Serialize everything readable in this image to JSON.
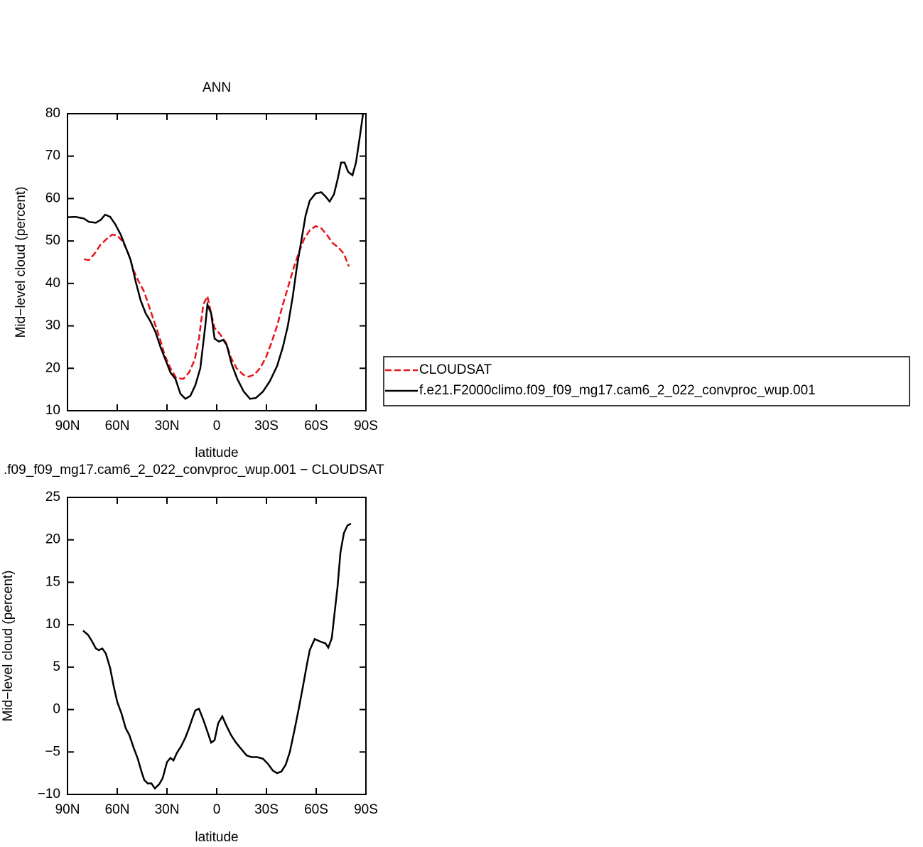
{
  "chart_data": [
    {
      "type": "line",
      "title": "ANN",
      "xlabel": "latitude",
      "ylabel": "Mid−level cloud (percent)",
      "xlim": [
        90,
        -90
      ],
      "ylim": [
        10,
        80
      ],
      "xticks": [
        {
          "value": 90,
          "label": "90N"
        },
        {
          "value": 60,
          "label": "60N"
        },
        {
          "value": 30,
          "label": "30N"
        },
        0,
        {
          "value": -30,
          "label": "30S"
        },
        {
          "value": -60,
          "label": "60S"
        },
        {
          "value": -90,
          "label": "90S"
        }
      ],
      "yticks": [
        10,
        20,
        30,
        40,
        50,
        60,
        70,
        80
      ],
      "legend": "outside right",
      "series": [
        {
          "name": "CLOUDSAT",
          "color": "#e8141a",
          "style": "dashed",
          "x": [
            80.1,
            77.1,
            73.7,
            70.3,
            66.4,
            63,
            60,
            57,
            53.6,
            50.1,
            47.1,
            43.7,
            40.7,
            37.3,
            34.3,
            31.3,
            27.9,
            24.4,
            20.1,
            16.7,
            13.3,
            10.7,
            8.1,
            5.6,
            3.4,
            1.3,
            -2.1,
            -5.6,
            -8.6,
            -12,
            -15.9,
            -19.3,
            -22.7,
            -26.1,
            -29.6,
            -33,
            -36.4,
            -39.9,
            -43.3,
            -46.7,
            -49.3,
            -52.7,
            -56.1,
            -59.6,
            -63,
            -66.4,
            -69.9,
            -73.3,
            -76.7,
            -79.7
          ],
          "values": [
            45.7,
            45.5,
            47,
            49,
            50.5,
            51.5,
            51.3,
            50,
            47.5,
            43,
            40.5,
            38,
            34.5,
            30.5,
            27,
            23,
            20,
            17.7,
            17.5,
            19,
            22,
            27,
            35,
            37,
            33,
            29.5,
            28,
            26,
            22.5,
            20,
            18.5,
            18,
            18.5,
            20,
            22.5,
            26,
            30,
            35,
            39.5,
            44,
            47,
            50.5,
            52.5,
            53.5,
            53,
            51.5,
            49.5,
            48.5,
            47,
            44
          ]
        },
        {
          "name": "f.e21.F2000climo.f09_f09_mg17.cam6_2_022_convproc_wup.001",
          "color": "#000000",
          "style": "solid",
          "x": [
            90,
            85.3,
            80.1,
            77.1,
            72.9,
            69.9,
            67.3,
            64.3,
            61.3,
            57.9,
            54.9,
            51.9,
            48.9,
            45.9,
            42.9,
            39.9,
            36.9,
            33.9,
            30.9,
            27.9,
            24.9,
            21.9,
            18.9,
            15.9,
            12.9,
            9.9,
            6.9,
            5.6,
            3.4,
            1.3,
            -1.3,
            -3.9,
            -6,
            -9,
            -12.4,
            -16.3,
            -20.1,
            -23.6,
            -27.9,
            -32.1,
            -36.4,
            -39.9,
            -42.9,
            -45.9,
            -48.4,
            -51,
            -53.6,
            -56.1,
            -59.6,
            -63,
            -65.6,
            -68.1,
            -70.7,
            -72.9,
            -75,
            -77.1,
            -79.3,
            -81.9,
            -84,
            -86.1,
            -88.3
          ],
          "values": [
            55.6,
            55.7,
            55.3,
            54.5,
            54.3,
            55,
            56.2,
            55.7,
            54,
            51.5,
            48.5,
            45.5,
            40.5,
            36,
            33,
            31,
            28.5,
            25,
            22,
            19,
            17.5,
            14,
            12.8,
            13.5,
            16,
            20,
            30,
            35,
            33,
            27,
            26.3,
            26.7,
            25.5,
            21,
            17.5,
            14.5,
            12.8,
            13,
            14.5,
            17,
            20.5,
            25,
            30,
            37,
            44,
            50,
            56,
            59.5,
            61.2,
            61.5,
            60.5,
            59.3,
            61,
            64.5,
            68.5,
            68.5,
            66.3,
            65.5,
            68.5,
            74,
            80
          ]
        }
      ]
    },
    {
      "type": "line",
      "title": ".f09_f09_mg17.cam6_2_022_convproc_wup.001 − CLOUDSAT",
      "xlabel": "latitude",
      "ylabel": "Mid−level cloud (percent)",
      "xlim": [
        90,
        -90
      ],
      "ylim": [
        -10,
        25
      ],
      "xticks": [
        {
          "value": 90,
          "label": "90N"
        },
        {
          "value": 60,
          "label": "60N"
        },
        {
          "value": 30,
          "label": "30N"
        },
        0,
        {
          "value": -30,
          "label": "30S"
        },
        {
          "value": -60,
          "label": "60S"
        },
        {
          "value": -90,
          "label": "90S"
        }
      ],
      "yticks": [
        {
          "value": -10,
          "label": "−10"
        },
        {
          "value": -5,
          "label": "−5"
        },
        0,
        5,
        10,
        15,
        20,
        25
      ],
      "series": [
        {
          "color": "#000000",
          "style": "solid",
          "x": [
            80.6,
            77.6,
            75.4,
            72.9,
            71.1,
            69,
            66.9,
            64.3,
            62.1,
            60,
            57.4,
            54.9,
            52.7,
            50.1,
            47.6,
            45.4,
            43.7,
            41.6,
            39.4,
            37.3,
            34.7,
            32.6,
            30,
            27.9,
            26.1,
            24,
            21.4,
            18.9,
            16.7,
            14.6,
            12.9,
            10.7,
            8.1,
            5.6,
            3.4,
            1.3,
            -0.9,
            -3.4,
            -5.6,
            -8.6,
            -11.6,
            -15,
            -18,
            -21,
            -24.4,
            -27.9,
            -30.9,
            -33.9,
            -36.4,
            -39,
            -41.6,
            -44.1,
            -46.7,
            -49.3,
            -51.9,
            -54.4,
            -56.1,
            -59.1,
            -62.6,
            -65.6,
            -67.3,
            -69.4,
            -71.1,
            -72.9,
            -74.6,
            -76.7,
            -78.9,
            -81
          ],
          "values": [
            9.3,
            8.8,
            8.1,
            7.2,
            7,
            7.2,
            6.6,
            4.9,
            2.7,
            0.9,
            -0.5,
            -2.2,
            -3,
            -4.5,
            -5.8,
            -7.3,
            -8.3,
            -8.7,
            -8.7,
            -9.3,
            -8.8,
            -8.1,
            -6.2,
            -5.7,
            -6,
            -5.1,
            -4.3,
            -3.3,
            -2.2,
            -1,
            -0.1,
            0.1,
            -1.2,
            -2.6,
            -3.9,
            -3.6,
            -1.6,
            -0.8,
            -1.8,
            -3,
            -3.9,
            -4.7,
            -5.4,
            -5.6,
            -5.6,
            -5.8,
            -6.4,
            -7.2,
            -7.5,
            -7.3,
            -6.5,
            -5,
            -2.6,
            -0.1,
            2.6,
            5.3,
            7,
            8.3,
            8,
            7.8,
            7.3,
            8.4,
            11.4,
            14.5,
            18.5,
            20.8,
            21.7,
            21.9
          ]
        }
      ]
    }
  ]
}
